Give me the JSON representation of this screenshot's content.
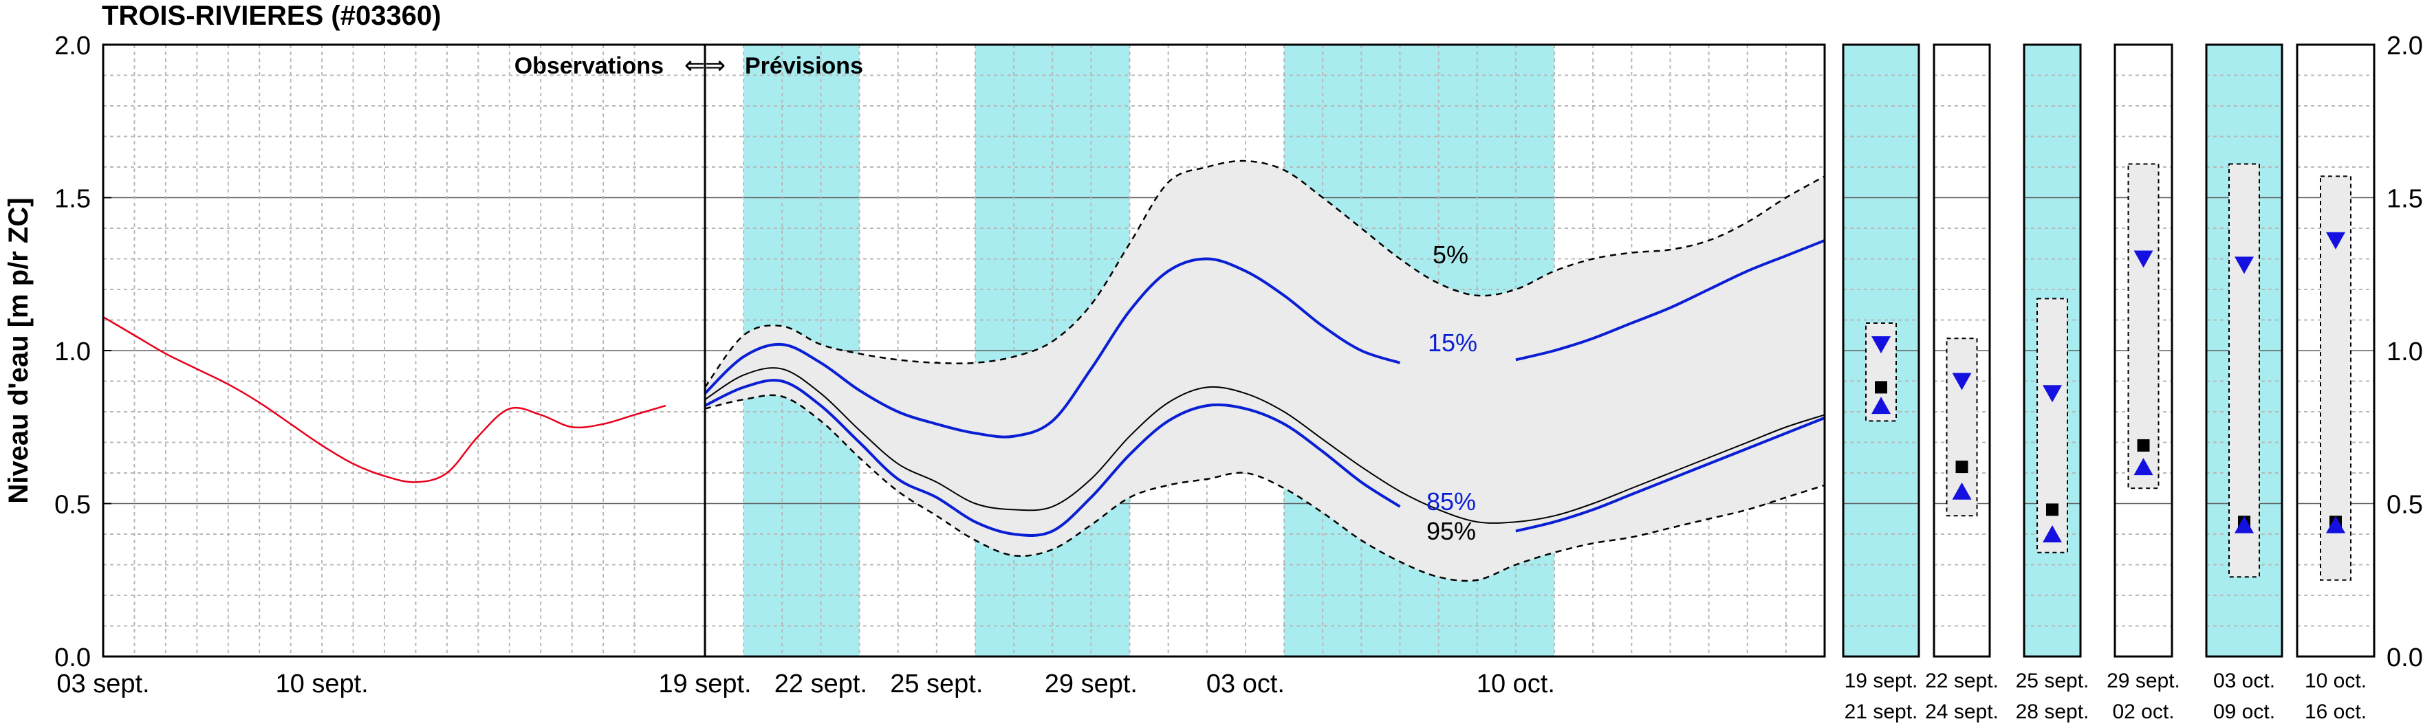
{
  "chart_data": {
    "type": "line",
    "title": "TROIS-RIVIERES (#03360)",
    "ylabel": "Niveau d'eau [m p/r ZC]",
    "ylim": [
      0.0,
      2.0
    ],
    "yticks": [
      "0.0",
      "0.5",
      "1.0",
      "1.5",
      "2.0"
    ],
    "annotation_obs": "Observations",
    "annotation_arrow": "⇐⇒",
    "annotation_prev": "Prévisions",
    "obs_xticks": [
      "03 sept.",
      "10 sept."
    ],
    "fc_xticks": [
      "19 sept.",
      "22 sept.",
      "25 sept.",
      "29 sept.",
      "03 oct.",
      "10 oct."
    ],
    "observed": {
      "color": "#e8001c",
      "x_days": [
        0,
        1,
        2,
        3,
        4,
        5,
        6,
        7,
        8,
        9,
        10,
        11,
        12,
        13,
        14,
        15,
        16,
        17,
        18
      ],
      "y": [
        1.11,
        1.05,
        0.99,
        0.94,
        0.89,
        0.83,
        0.76,
        0.69,
        0.63,
        0.59,
        0.57,
        0.6,
        0.72,
        0.81,
        0.79,
        0.75,
        0.76,
        0.79,
        0.82
      ]
    },
    "forecast": {
      "x_days": [
        0,
        1,
        2,
        3,
        4,
        5,
        6,
        7,
        8,
        9,
        10,
        11,
        12,
        13,
        14,
        15,
        16,
        17,
        18,
        19,
        20,
        21,
        22,
        23,
        24,
        25,
        26,
        27,
        28,
        29
      ],
      "shaded_bands": [
        [
          1,
          4
        ],
        [
          7,
          11
        ],
        [
          15,
          22
        ]
      ],
      "p5_label": "5%",
      "p15_label": "15%",
      "p85_label": "85%",
      "p95_label": "95%",
      "series": [
        {
          "name": "5%",
          "style": "dashed",
          "color": "#000000",
          "values": [
            0.88,
            1.05,
            1.08,
            1.02,
            0.99,
            0.97,
            0.96,
            0.96,
            0.98,
            1.03,
            1.15,
            1.35,
            1.55,
            1.6,
            1.62,
            1.59,
            1.5,
            1.4,
            1.3,
            1.22,
            1.18,
            1.2,
            1.26,
            1.3,
            1.32,
            1.33,
            1.36,
            1.42,
            1.5,
            1.57
          ]
        },
        {
          "name": "15%",
          "style": "solid",
          "color": "#0a1fd4",
          "values": [
            0.86,
            0.98,
            1.02,
            0.96,
            0.87,
            0.8,
            0.76,
            0.73,
            0.72,
            0.77,
            0.94,
            1.13,
            1.26,
            1.3,
            1.26,
            1.18,
            1.08,
            1.0,
            0.96,
            0.95,
            0.95,
            0.97,
            1.0,
            1.04,
            1.09,
            1.14,
            1.2,
            1.26,
            1.31,
            1.36
          ]
        },
        {
          "name": "median",
          "style": "solid",
          "color": "#000000",
          "values": [
            0.84,
            0.92,
            0.94,
            0.86,
            0.74,
            0.63,
            0.57,
            0.5,
            0.48,
            0.49,
            0.58,
            0.72,
            0.83,
            0.88,
            0.86,
            0.8,
            0.71,
            0.62,
            0.54,
            0.48,
            0.44,
            0.44,
            0.46,
            0.5,
            0.55,
            0.6,
            0.65,
            0.7,
            0.75,
            0.79
          ]
        },
        {
          "name": "85%",
          "style": "solid",
          "color": "#0a1fd4",
          "values": [
            0.82,
            0.88,
            0.9,
            0.82,
            0.7,
            0.58,
            0.52,
            0.44,
            0.4,
            0.41,
            0.52,
            0.66,
            0.77,
            0.82,
            0.81,
            0.76,
            0.67,
            0.57,
            0.49,
            0.44,
            0.41,
            0.41,
            0.44,
            0.48,
            0.53,
            0.58,
            0.63,
            0.68,
            0.73,
            0.78
          ]
        },
        {
          "name": "95%",
          "style": "dashed",
          "color": "#000000",
          "values": [
            0.81,
            0.84,
            0.85,
            0.77,
            0.65,
            0.54,
            0.46,
            0.38,
            0.33,
            0.35,
            0.43,
            0.52,
            0.56,
            0.58,
            0.6,
            0.55,
            0.47,
            0.38,
            0.31,
            0.26,
            0.25,
            0.3,
            0.34,
            0.37,
            0.39,
            0.42,
            0.45,
            0.48,
            0.52,
            0.56
          ]
        }
      ]
    },
    "weekly_summaries": [
      {
        "label_top": "19 sept.",
        "label_bottom": "21 sept.",
        "shaded": true,
        "box_low": 0.77,
        "box_high": 1.09,
        "max": 1.02,
        "median": 0.88,
        "min": 0.82
      },
      {
        "label_top": "22 sept.",
        "label_bottom": "24 sept.",
        "shaded": false,
        "box_low": 0.46,
        "box_high": 1.04,
        "max": 0.9,
        "median": 0.62,
        "min": 0.54
      },
      {
        "label_top": "25 sept.",
        "label_bottom": "28 sept.",
        "shaded": true,
        "box_low": 0.34,
        "box_high": 1.17,
        "max": 0.86,
        "median": 0.48,
        "min": 0.4
      },
      {
        "label_top": "29 sept.",
        "label_bottom": "02 oct.",
        "shaded": false,
        "box_low": 0.55,
        "box_high": 1.61,
        "max": 1.3,
        "median": 0.69,
        "min": 0.62
      },
      {
        "label_top": "03 oct.",
        "label_bottom": "09 oct.",
        "shaded": true,
        "box_low": 0.26,
        "box_high": 1.61,
        "max": 1.28,
        "median": 0.44,
        "min": 0.43
      },
      {
        "label_top": "10 oct.",
        "label_bottom": "16 oct.",
        "shaded": false,
        "box_low": 0.25,
        "box_high": 1.57,
        "max": 1.36,
        "median": 0.44,
        "min": 0.43
      }
    ],
    "right_yticks": [
      "0.0",
      "0.5",
      "1.0",
      "1.5",
      "2.0"
    ]
  },
  "colors": {
    "band": "#a8ecf0",
    "envelope": "#ebebeb",
    "observed": "#e8001c",
    "forecast_blue": "#0a1fd4",
    "marker_blue": "#1411e0"
  }
}
